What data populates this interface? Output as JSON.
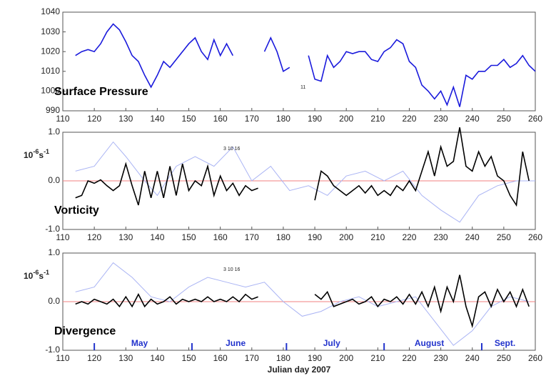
{
  "chart_data": [
    {
      "type": "line",
      "label": "Surface Pressure",
      "annotation": "11",
      "x": [
        114,
        116,
        118,
        120,
        122,
        124,
        126,
        128,
        130,
        132,
        134,
        136,
        138,
        140,
        142,
        144,
        146,
        148,
        150,
        152,
        154,
        156,
        158,
        160,
        162,
        164,
        166,
        168,
        170,
        172,
        174,
        176,
        178,
        180,
        182,
        184,
        186,
        188,
        190,
        192,
        194,
        196,
        198,
        200,
        202,
        204,
        206,
        208,
        210,
        212,
        214,
        216,
        218,
        220,
        222,
        224,
        226,
        228,
        230,
        232,
        234,
        236,
        238,
        240,
        242,
        244,
        246,
        248,
        250,
        252,
        254,
        256,
        258,
        260
      ],
      "series": [
        {
          "color": "#1a1adc",
          "values": [
            1018,
            1020,
            1021,
            1020,
            1024,
            1030,
            1034,
            1031,
            1025,
            1018,
            1015,
            1008,
            1002,
            1008,
            1015,
            1012,
            1016,
            1020,
            1024,
            1027,
            1020,
            1016,
            1026,
            1018,
            1024,
            1018,
            null,
            null,
            null,
            null,
            1020,
            1027,
            1020,
            1010,
            1012,
            null,
            null,
            1018,
            1006,
            1005,
            1018,
            1012,
            1015,
            1020,
            1019,
            1020,
            1020,
            1016,
            1015,
            1020,
            1022,
            1026,
            1024,
            1015,
            1012,
            1003,
            1000,
            996,
            1000,
            993,
            1002,
            992,
            1008,
            1006,
            1010,
            1010,
            1013,
            1013,
            1016,
            1012,
            1014,
            1018,
            1013,
            1010
          ]
        }
      ],
      "xlim": [
        110,
        260
      ],
      "xticks": [
        110,
        120,
        130,
        140,
        150,
        160,
        170,
        180,
        190,
        200,
        210,
        220,
        230,
        240,
        250,
        260
      ],
      "ylim": [
        990,
        1040
      ],
      "yticks": [
        990,
        1000,
        1010,
        1020,
        1030,
        1040
      ]
    },
    {
      "type": "line",
      "label": "Vorticity",
      "annotation": "3  10  16",
      "ylabel": {
        "base": "10",
        "exp1": "-6",
        "unit": "s",
        "exp2": "-1"
      },
      "zero_line": true,
      "x": [
        114,
        116,
        118,
        120,
        122,
        124,
        126,
        128,
        130,
        132,
        134,
        136,
        138,
        140,
        142,
        144,
        146,
        148,
        150,
        152,
        154,
        156,
        158,
        160,
        162,
        164,
        166,
        168,
        170,
        172,
        174,
        176,
        178,
        180,
        182,
        184,
        186,
        188,
        190,
        192,
        194,
        196,
        198,
        200,
        202,
        204,
        206,
        208,
        210,
        212,
        214,
        216,
        218,
        220,
        222,
        224,
        226,
        228,
        230,
        232,
        234,
        236,
        238,
        240,
        242,
        244,
        246,
        248,
        250,
        252,
        254,
        256,
        258
      ],
      "series": [
        {
          "color": "#aab4f4",
          "x": [
            114,
            120,
            126,
            130,
            136,
            140,
            146,
            152,
            158,
            164,
            170,
            176,
            182,
            188,
            194,
            200,
            206,
            212,
            218,
            224,
            230,
            236,
            242,
            248,
            254,
            260
          ],
          "values": [
            0.2,
            0.3,
            0.8,
            0.5,
            0.0,
            -0.3,
            0.3,
            0.5,
            0.3,
            0.7,
            0.0,
            0.3,
            -0.2,
            -0.1,
            -0.3,
            0.1,
            0.2,
            0.0,
            0.2,
            -0.3,
            -0.6,
            -0.85,
            -0.3,
            -0.1,
            0.0,
            0.0
          ]
        },
        {
          "color": "#000000",
          "values": [
            -0.35,
            -0.3,
            0.0,
            -0.05,
            0.02,
            -0.1,
            -0.2,
            -0.1,
            0.35,
            -0.1,
            -0.5,
            0.2,
            -0.35,
            0.2,
            -0.35,
            0.3,
            -0.3,
            0.35,
            -0.2,
            0.0,
            -0.1,
            0.3,
            -0.3,
            0.1,
            -0.2,
            -0.05,
            -0.3,
            -0.1,
            -0.2,
            -0.15,
            null,
            null,
            null,
            null,
            null,
            null,
            null,
            null,
            -0.4,
            0.2,
            0.1,
            -0.1,
            -0.2,
            -0.3,
            -0.2,
            -0.1,
            -0.25,
            -0.1,
            -0.3,
            -0.2,
            -0.3,
            -0.1,
            -0.2,
            0.0,
            -0.2,
            0.2,
            0.6,
            0.1,
            0.7,
            0.3,
            0.4,
            1.1,
            0.3,
            0.2,
            0.6,
            0.3,
            0.5,
            0.1,
            0.0,
            -0.3,
            -0.5,
            0.6,
            0.0
          ]
        }
      ],
      "xlim": [
        110,
        260
      ],
      "xticks": [
        110,
        120,
        130,
        140,
        150,
        160,
        170,
        180,
        190,
        200,
        210,
        220,
        230,
        240,
        250,
        260
      ],
      "ylim": [
        -1,
        1
      ],
      "yticks": [
        {
          "value": -1,
          "label": "-1.0"
        },
        {
          "value": 0,
          "label": "0.0"
        },
        {
          "value": 1,
          "label": "1.0"
        }
      ]
    },
    {
      "type": "line",
      "label": "Divergence",
      "annotation": "3  10  16",
      "ylabel": {
        "base": "10",
        "exp1": "-6",
        "unit": "s",
        "exp2": "-1"
      },
      "zero_line": true,
      "xlabel": "Julian day 2007",
      "month_ticks": [
        120,
        151,
        181,
        212,
        243
      ],
      "month_labels": [
        "May",
        "June",
        "July",
        "August",
        "Sept."
      ],
      "x": [
        114,
        116,
        118,
        120,
        122,
        124,
        126,
        128,
        130,
        132,
        134,
        136,
        138,
        140,
        142,
        144,
        146,
        148,
        150,
        152,
        154,
        156,
        158,
        160,
        162,
        164,
        166,
        168,
        170,
        172,
        174,
        176,
        178,
        180,
        182,
        184,
        186,
        188,
        190,
        192,
        194,
        196,
        198,
        200,
        202,
        204,
        206,
        208,
        210,
        212,
        214,
        216,
        218,
        220,
        222,
        224,
        226,
        228,
        230,
        232,
        234,
        236,
        238,
        240,
        242,
        244,
        246,
        248,
        250,
        252,
        254,
        256,
        258
      ],
      "series": [
        {
          "color": "#aab4f4",
          "x": [
            114,
            120,
            126,
            132,
            138,
            144,
            150,
            156,
            162,
            168,
            174,
            180,
            186,
            192,
            198,
            204,
            210,
            216,
            222,
            228,
            234,
            240,
            246,
            252,
            258
          ],
          "values": [
            0.2,
            0.3,
            0.8,
            0.5,
            0.1,
            0.0,
            0.3,
            0.5,
            0.4,
            0.3,
            0.4,
            0.0,
            -0.3,
            -0.2,
            0.0,
            0.1,
            -0.1,
            0.0,
            0.1,
            -0.4,
            -0.9,
            -0.6,
            -0.1,
            0.1,
            0.0
          ]
        },
        {
          "color": "#000000",
          "values": [
            -0.05,
            0.0,
            -0.05,
            0.05,
            0.0,
            -0.05,
            0.05,
            -0.1,
            0.1,
            -0.1,
            0.15,
            -0.1,
            0.05,
            -0.05,
            0.0,
            0.1,
            -0.05,
            0.05,
            0.0,
            0.05,
            0.0,
            0.1,
            0.0,
            0.05,
            0.0,
            0.1,
            0.0,
            0.15,
            0.05,
            0.1,
            null,
            null,
            null,
            null,
            null,
            null,
            null,
            null,
            0.15,
            0.05,
            0.2,
            -0.1,
            -0.05,
            0.0,
            0.05,
            -0.05,
            0.0,
            0.1,
            -0.1,
            0.05,
            0.0,
            0.1,
            -0.05,
            0.15,
            -0.05,
            0.2,
            -0.1,
            0.3,
            -0.2,
            0.3,
            0.0,
            0.55,
            -0.1,
            -0.5,
            0.1,
            0.2,
            -0.1,
            0.25,
            0.0,
            0.2,
            -0.1,
            0.25,
            -0.1
          ]
        }
      ],
      "xlim": [
        110,
        260
      ],
      "xticks": [
        110,
        120,
        130,
        140,
        150,
        160,
        170,
        180,
        190,
        200,
        210,
        220,
        230,
        240,
        250,
        260
      ],
      "ylim": [
        -1,
        1
      ],
      "yticks": [
        {
          "value": -1,
          "label": "-1.0"
        },
        {
          "value": 0,
          "label": "0.0"
        },
        {
          "value": 1,
          "label": "1.0"
        }
      ]
    }
  ]
}
